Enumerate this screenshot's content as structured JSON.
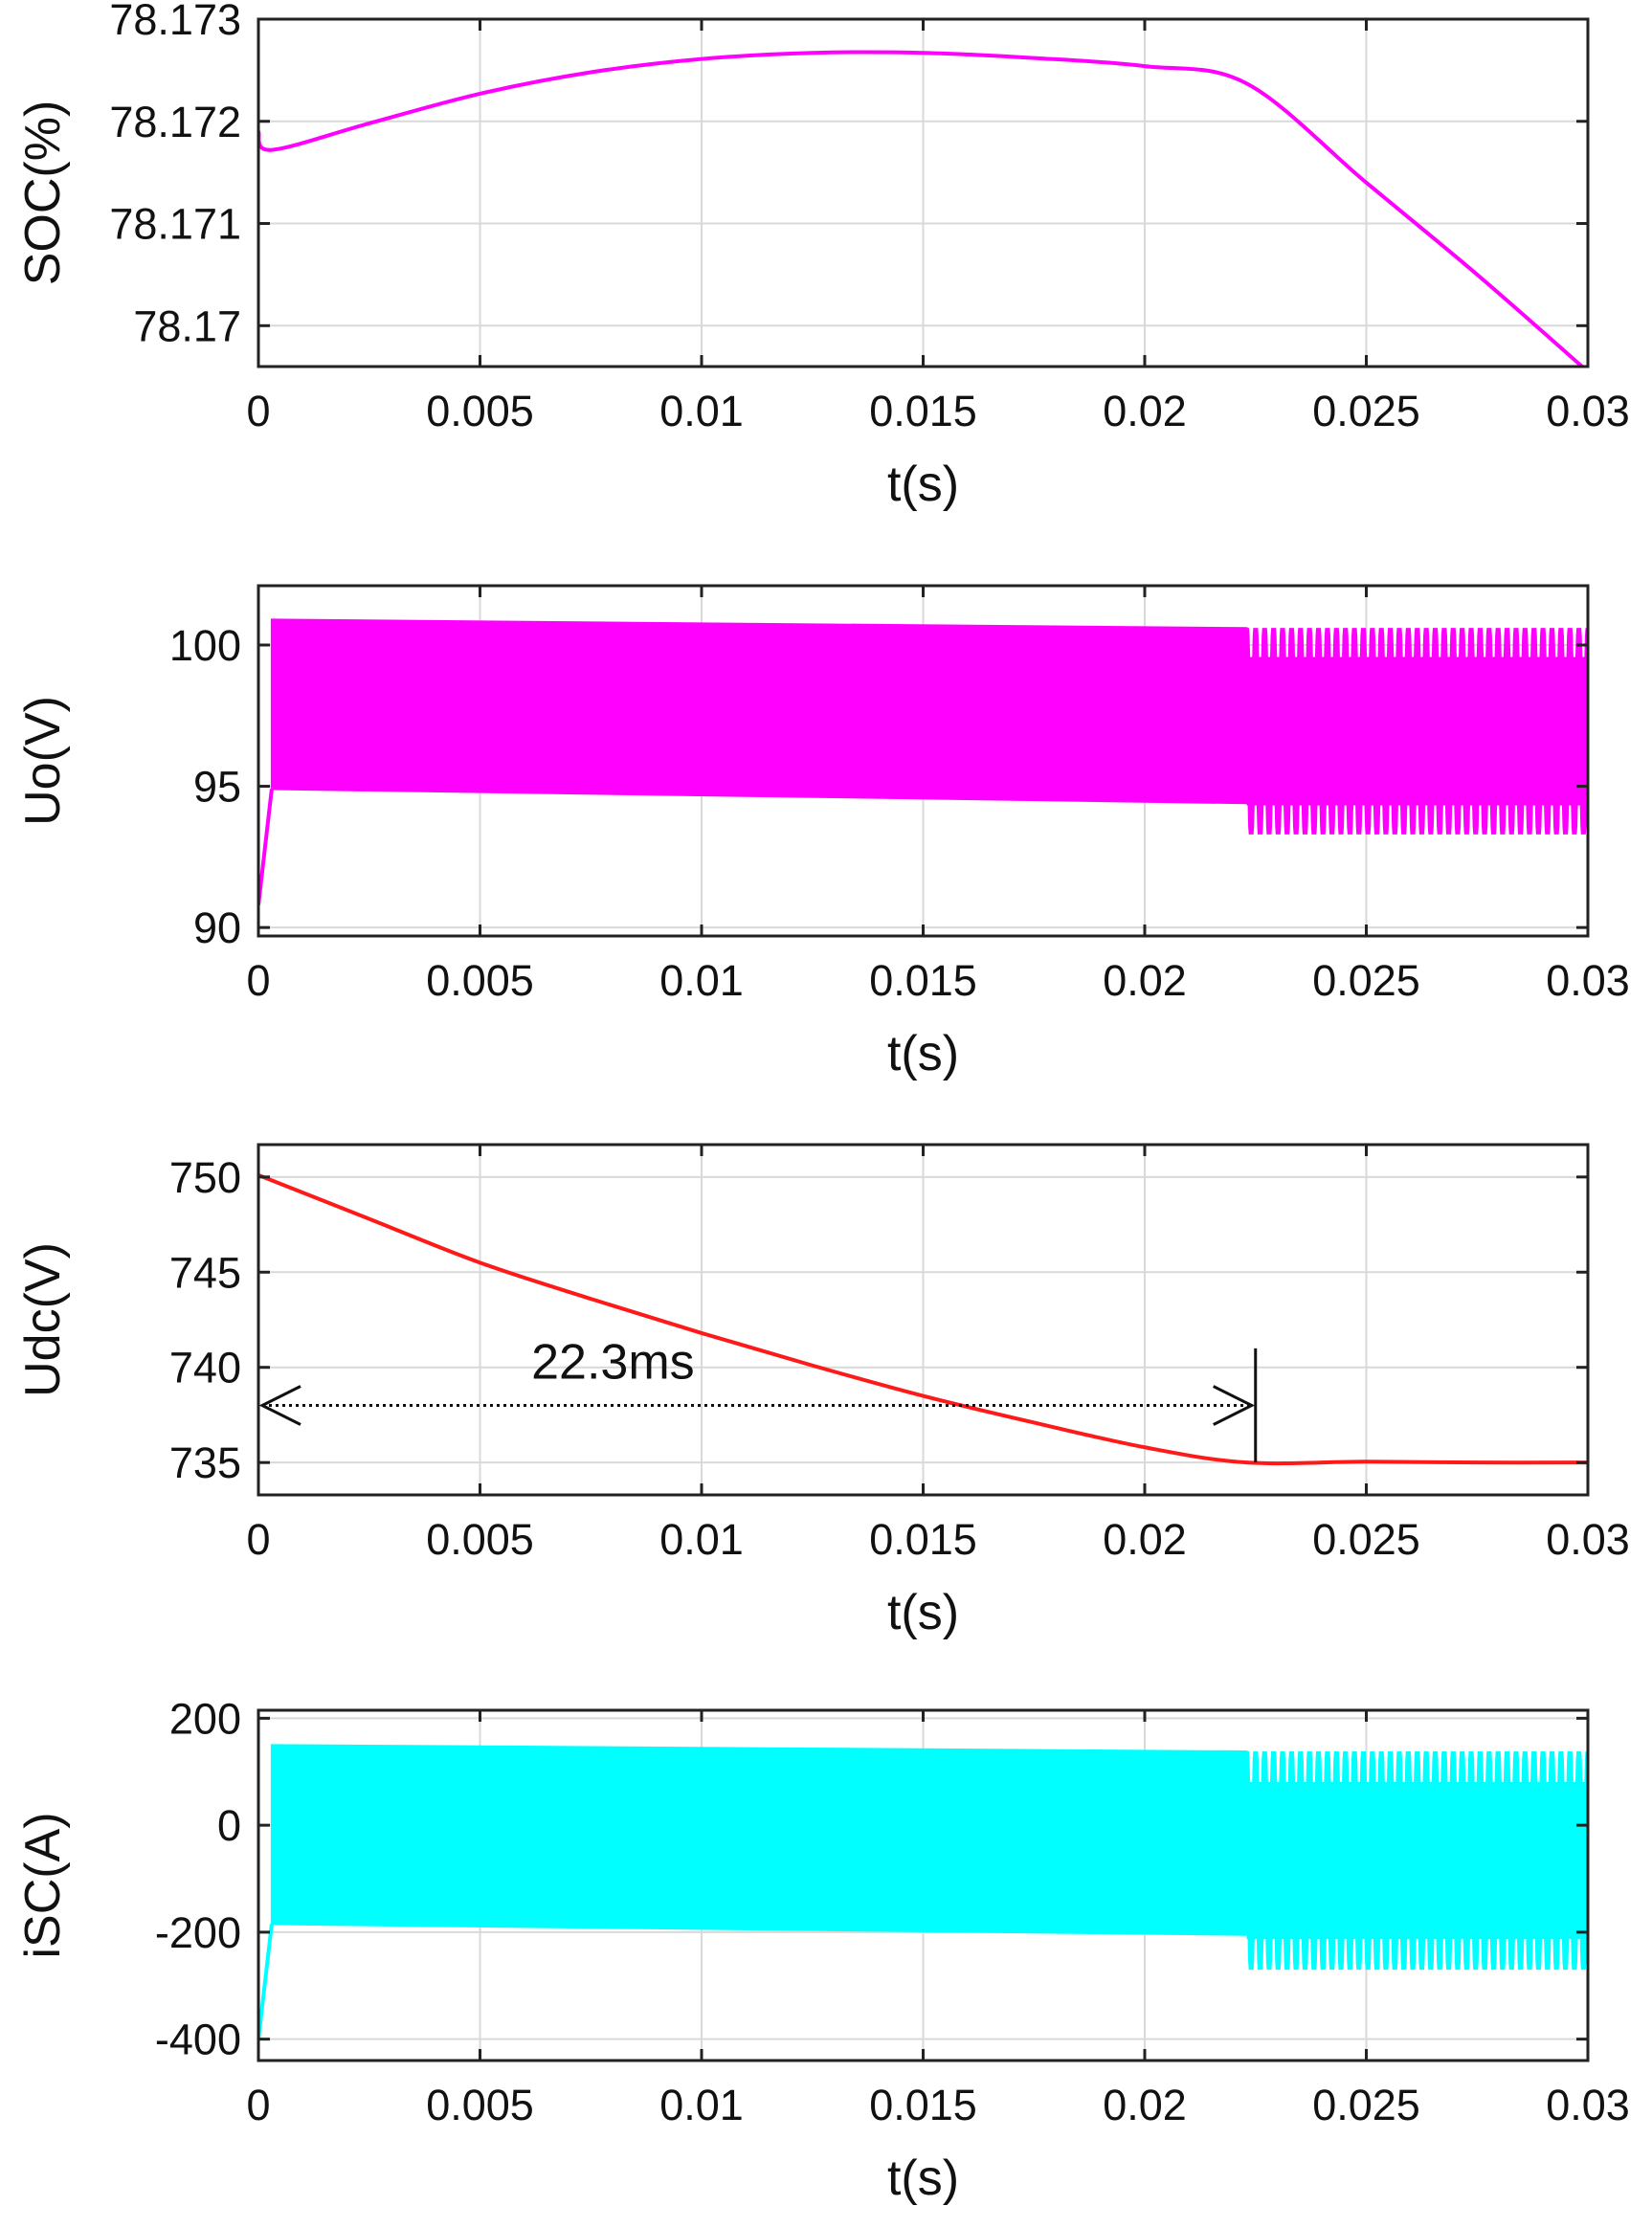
{
  "chart_data": [
    {
      "type": "line",
      "xlabel": "t(s)",
      "ylabel": "SOC(%)",
      "xlim": [
        0,
        0.03
      ],
      "ylim": [
        78.1696,
        78.173
      ],
      "xticks": [
        0,
        0.005,
        0.01,
        0.015,
        0.02,
        0.025,
        0.03
      ],
      "xtick_labels": [
        "0",
        "0.005",
        "0.01",
        "0.015",
        "0.02",
        "0.025",
        "0.03"
      ],
      "yticks": [
        78.17,
        78.171,
        78.172,
        78.173
      ],
      "ytick_labels": [
        "78.17",
        "78.171",
        "78.172",
        "78.173"
      ],
      "grid": true,
      "series": [
        {
          "color": "#ff00ff",
          "style": "smooth",
          "x": [
            0,
            0.0003,
            0.0025,
            0.005,
            0.0075,
            0.01,
            0.0125,
            0.015,
            0.0175,
            0.02,
            0.0223,
            0.025,
            0.0275,
            0.03
          ],
          "y": [
            78.1719,
            78.17172,
            78.17198,
            78.17227,
            78.17248,
            78.17261,
            78.17267,
            78.17267,
            78.17262,
            78.17254,
            78.17237,
            78.1714,
            78.1705,
            78.16955
          ]
        }
      ]
    },
    {
      "type": "line",
      "xlabel": "t(s)",
      "ylabel": "Uo(V)",
      "xlim": [
        0,
        0.03
      ],
      "ylim": [
        89.7,
        102.1
      ],
      "xticks": [
        0,
        0.005,
        0.01,
        0.015,
        0.02,
        0.025,
        0.03
      ],
      "xtick_labels": [
        "0",
        "0.005",
        "0.01",
        "0.015",
        "0.02",
        "0.025",
        "0.03"
      ],
      "yticks": [
        90,
        95,
        100
      ],
      "ytick_labels": [
        "90",
        "95",
        "100"
      ],
      "grid": true,
      "series": [
        {
          "color": "#ff00ff",
          "style": "envelope",
          "startup": {
            "x": [
              0,
              0.0003
            ],
            "y": [
              90.8,
              94.9
            ]
          },
          "dense": {
            "x0": 0.0003,
            "x1": 0.0223,
            "upper": [
              100.9,
              100.6
            ],
            "lower": [
              94.9,
              94.4
            ]
          },
          "oscillation": {
            "x0": 0.0223,
            "x1": 0.03,
            "upper": 100.6,
            "lower": 93.3,
            "cycles": 38
          }
        }
      ]
    },
    {
      "type": "line",
      "xlabel": "t(s)",
      "ylabel": "Udc(V)",
      "xlim": [
        0,
        0.03
      ],
      "ylim": [
        733.3,
        751.7
      ],
      "xticks": [
        0,
        0.005,
        0.01,
        0.015,
        0.02,
        0.025,
        0.03
      ],
      "xtick_labels": [
        "0",
        "0.005",
        "0.01",
        "0.015",
        "0.02",
        "0.025",
        "0.03"
      ],
      "yticks": [
        735,
        740,
        745,
        750
      ],
      "ytick_labels": [
        "735",
        "740",
        "745",
        "750"
      ],
      "grid": true,
      "series": [
        {
          "color": "#ff1a1a",
          "style": "smooth",
          "x": [
            0,
            0.0025,
            0.005,
            0.0075,
            0.01,
            0.0125,
            0.015,
            0.0175,
            0.02,
            0.0223,
            0.025,
            0.0275,
            0.03
          ],
          "y": [
            750.1,
            747.8,
            745.5,
            743.6,
            741.8,
            740.1,
            738.5,
            737.1,
            735.8,
            735.0,
            735.05,
            735.0,
            735.0
          ]
        }
      ],
      "annotation": {
        "text": "22.3ms",
        "x_start": 0,
        "x_end": 0.0225,
        "y": 738.0,
        "marker_x": 0.0225,
        "marker_y": [
          735.0,
          741.0
        ],
        "text_x": 0.008,
        "text_y": 739.4
      }
    },
    {
      "type": "line",
      "xlabel": "t(s)",
      "ylabel": "iSC(A)",
      "xlim": [
        0,
        0.03
      ],
      "ylim": [
        -440,
        215
      ],
      "xticks": [
        0,
        0.005,
        0.01,
        0.015,
        0.02,
        0.025,
        0.03
      ],
      "xtick_labels": [
        "0",
        "0.005",
        "0.01",
        "0.015",
        "0.02",
        "0.025",
        "0.03"
      ],
      "yticks": [
        -400,
        -200,
        0,
        200
      ],
      "ytick_labels": [
        "-400",
        "-200",
        "0",
        "200"
      ],
      "grid": true,
      "series": [
        {
          "color": "#00ffff",
          "style": "envelope",
          "startup": {
            "x": [
              0,
              0.0003
            ],
            "y": [
              -400,
              -185
            ]
          },
          "dense": {
            "x0": 0.0003,
            "x1": 0.0223,
            "upper": [
              150,
              138
            ],
            "lower": [
              -185,
              -205
            ]
          },
          "oscillation": {
            "x0": 0.0223,
            "x1": 0.03,
            "upper": 138,
            "lower": -270,
            "cycles": 38
          }
        }
      ]
    }
  ]
}
